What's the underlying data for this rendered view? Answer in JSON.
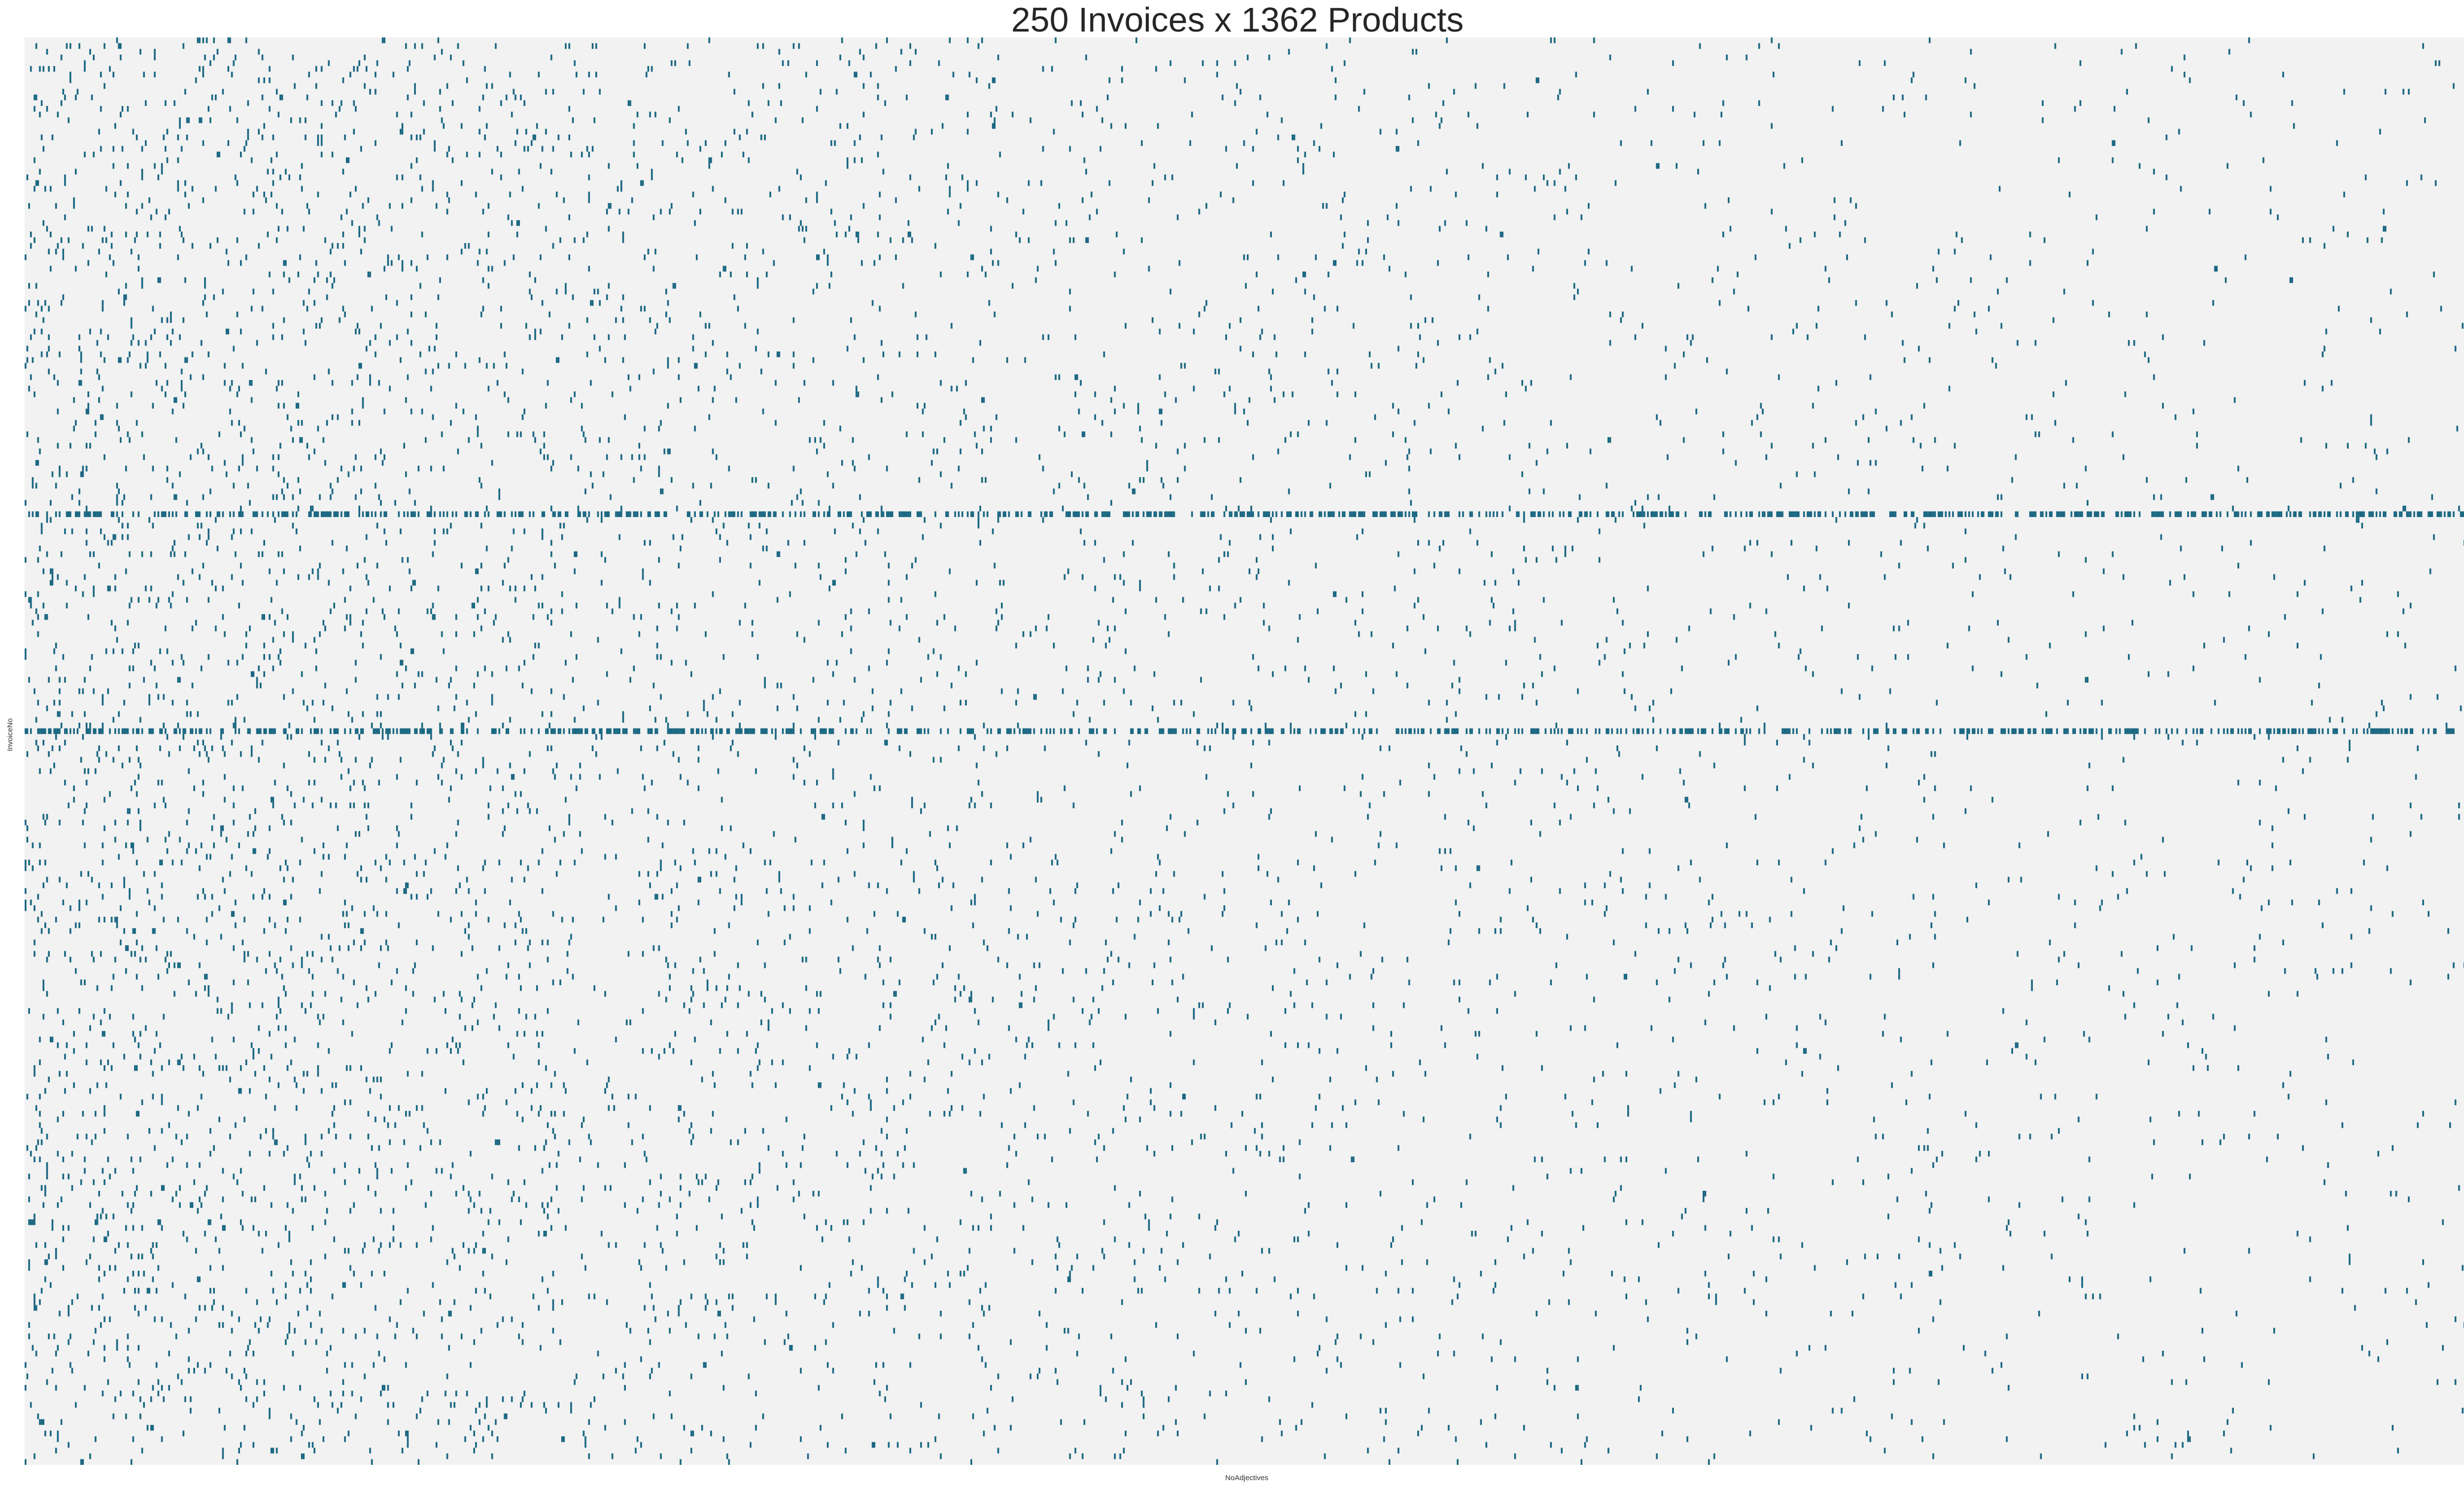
{
  "chart_data": {
    "type": "heatmap",
    "title": "250 Invoices x 1362 Products",
    "xlabel": "NoAdjectives",
    "ylabel": "InvoiceNo",
    "n_rows": 250,
    "n_cols": 1362,
    "values": "binary presence (1 = product on invoice)",
    "grid": false,
    "colors": {
      "background": "#f2f2f2",
      "filled": "#1a6782"
    },
    "dense_rows": [
      83,
      121
    ],
    "seed": 20240
  }
}
